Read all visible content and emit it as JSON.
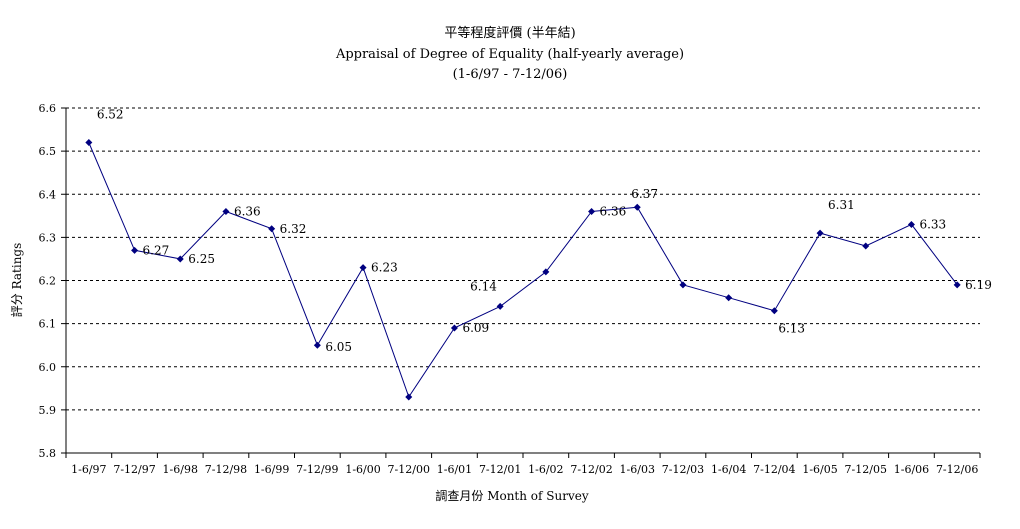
{
  "chart_data": {
    "type": "line",
    "title": "平等程度評價 (半年結)",
    "subtitle": "Appraisal of Degree of Equality (half-yearly average)",
    "period": "(1-6/97 - 7-12/06)",
    "xlabel": "調查月份 Month of Survey",
    "ylabel": "評分 Ratings",
    "ylim": [
      5.8,
      6.6
    ],
    "yticks": [
      "5.8",
      "5.9",
      "6.0",
      "6.1",
      "6.2",
      "6.3",
      "6.4",
      "6.5",
      "6.6"
    ],
    "grid": true,
    "legend": "none",
    "categories": [
      "1-6/97",
      "7-12/97",
      "1-6/98",
      "7-12/98",
      "1-6/99",
      "7-12/99",
      "1-6/00",
      "7-12/00",
      "1-6/01",
      "7-12/01",
      "1-6/02",
      "7-12/02",
      "1-6/03",
      "7-12/03",
      "1-6/04",
      "7-12/04",
      "1-6/05",
      "7-12/05",
      "1-6/06",
      "7-12/06"
    ],
    "series": [
      {
        "values": [
          6.52,
          6.27,
          6.25,
          6.36,
          6.32,
          6.05,
          6.23,
          5.93,
          6.09,
          6.14,
          6.22,
          6.36,
          6.37,
          6.19,
          6.16,
          6.13,
          6.31,
          6.28,
          6.33,
          6.19
        ],
        "data_labels": [
          "6.52",
          "6.27",
          "6.25",
          "6.36",
          "6.32",
          "6.05",
          "6.23",
          "",
          "6.09",
          "6.14",
          "",
          "6.36",
          "6.37",
          "",
          "",
          "6.13",
          "6.31",
          "",
          "6.33",
          "6.19"
        ],
        "color": "#000080"
      }
    ]
  }
}
